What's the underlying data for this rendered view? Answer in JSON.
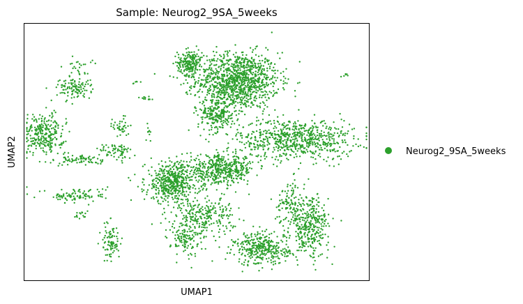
{
  "chart_data": {
    "type": "scatter",
    "title": "Sample: Neurog2_9SA_5weeks",
    "xlabel": "UMAP1",
    "ylabel": "UMAP2",
    "xticks": [],
    "yticks": [],
    "grid": false,
    "legend_placement": "right",
    "series": [
      {
        "name": "Neurog2_9SA_5weeks",
        "color": "#2ca02c"
      }
    ],
    "point_groups": [
      {
        "cx": 0.62,
        "cy": 0.78,
        "sx": 0.06,
        "sy": 0.055,
        "n": 1100
      },
      {
        "cx": 0.48,
        "cy": 0.85,
        "sx": 0.018,
        "sy": 0.025,
        "n": 200
      },
      {
        "cx": 0.56,
        "cy": 0.65,
        "sx": 0.028,
        "sy": 0.035,
        "n": 250
      },
      {
        "cx": 0.79,
        "cy": 0.55,
        "sx": 0.085,
        "sy": 0.04,
        "n": 700
      },
      {
        "cx": 0.43,
        "cy": 0.38,
        "sx": 0.04,
        "sy": 0.04,
        "n": 500
      },
      {
        "cx": 0.57,
        "cy": 0.43,
        "sx": 0.05,
        "sy": 0.028,
        "n": 450
      },
      {
        "cx": 0.52,
        "cy": 0.25,
        "sx": 0.045,
        "sy": 0.035,
        "n": 250
      },
      {
        "cx": 0.47,
        "cy": 0.16,
        "sx": 0.022,
        "sy": 0.035,
        "n": 120
      },
      {
        "cx": 0.69,
        "cy": 0.12,
        "sx": 0.04,
        "sy": 0.032,
        "n": 350
      },
      {
        "cx": 0.83,
        "cy": 0.21,
        "sx": 0.028,
        "sy": 0.06,
        "n": 350
      },
      {
        "cx": 0.77,
        "cy": 0.3,
        "sx": 0.018,
        "sy": 0.045,
        "n": 100
      },
      {
        "cx": 0.055,
        "cy": 0.57,
        "sx": 0.03,
        "sy": 0.04,
        "n": 280
      },
      {
        "cx": 0.14,
        "cy": 0.75,
        "sx": 0.025,
        "sy": 0.022,
        "n": 110
      },
      {
        "cx": 0.17,
        "cy": 0.47,
        "sx": 0.03,
        "sy": 0.012,
        "n": 70
      },
      {
        "cx": 0.15,
        "cy": 0.33,
        "sx": 0.045,
        "sy": 0.015,
        "n": 100
      },
      {
        "cx": 0.27,
        "cy": 0.5,
        "sx": 0.025,
        "sy": 0.018,
        "n": 70
      },
      {
        "cx": 0.25,
        "cy": 0.15,
        "sx": 0.013,
        "sy": 0.04,
        "n": 90
      },
      {
        "cx": 0.28,
        "cy": 0.6,
        "sx": 0.012,
        "sy": 0.02,
        "n": 40
      },
      {
        "cx": 0.16,
        "cy": 0.25,
        "sx": 0.008,
        "sy": 0.01,
        "n": 15
      },
      {
        "cx": 0.35,
        "cy": 0.71,
        "sx": 0.012,
        "sy": 0.004,
        "n": 12
      },
      {
        "cx": 0.36,
        "cy": 0.58,
        "sx": 0.004,
        "sy": 0.02,
        "n": 10
      },
      {
        "cx": 0.15,
        "cy": 0.84,
        "sx": 0.02,
        "sy": 0.025,
        "n": 25
      },
      {
        "cx": 0.93,
        "cy": 0.8,
        "sx": 0.01,
        "sy": 0.004,
        "n": 6
      },
      {
        "cx": 0.32,
        "cy": 0.77,
        "sx": 0.006,
        "sy": 0.006,
        "n": 6
      }
    ]
  },
  "legend": {
    "label": "Neurog2_9SA_5weeks"
  }
}
